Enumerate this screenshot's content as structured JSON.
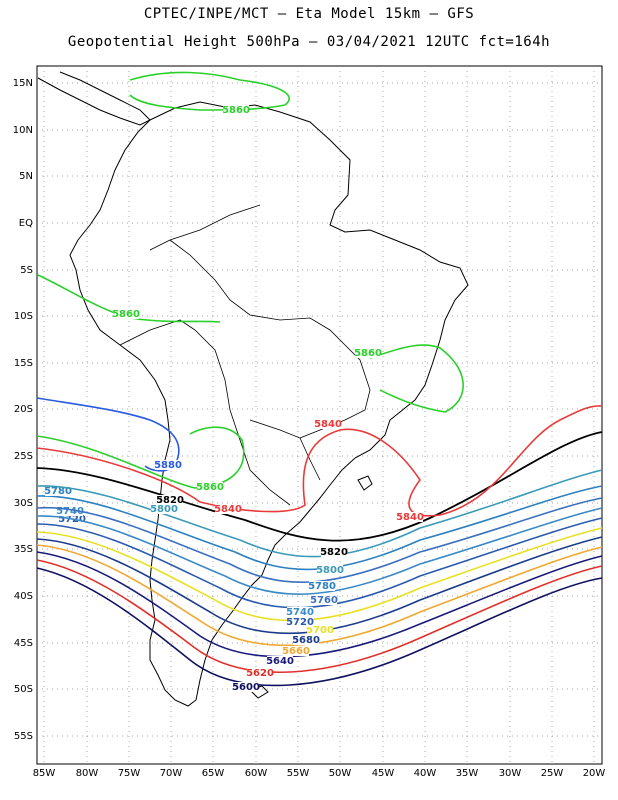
{
  "title_line1": "CPTEC/INPE/MCT –  Eta Model 15km – GFS",
  "title_line2": "Geopotential Height 500hPa – 03/04/2021 12UTC fct=164h",
  "lat_ticks": [
    "15N",
    "10N",
    "5N",
    "EQ",
    "5S",
    "10S",
    "15S",
    "20S",
    "25S",
    "30S",
    "35S",
    "40S",
    "45S",
    "50S",
    "55S"
  ],
  "lon_ticks": [
    "85W",
    "80W",
    "75W",
    "70W",
    "65W",
    "60W",
    "55W",
    "50W",
    "45W",
    "40W",
    "35W",
    "30W",
    "25W",
    "20W"
  ],
  "colors": {
    "c5600": "#101060",
    "c5620": "#e0302a",
    "c5640": "#1a1a7a",
    "c5660": "#f0a830",
    "c5680": "#1a3a8a",
    "c5700": "#e8e020",
    "c5720": "#2a5ab0",
    "c5740": "#3a8ac8",
    "c5760": "#3a70c0",
    "c5780": "#2a80c0",
    "c5800": "#3a9ab8",
    "c5820": "#000000",
    "c5840": "#e83a3a",
    "c5860": "#2ad02a",
    "c5880": "#2a5ae0",
    "coast": "#000000",
    "grid": "#888888"
  },
  "contours": [
    {
      "value": 5600,
      "label": "5600"
    },
    {
      "value": 5620,
      "label": "5620"
    },
    {
      "value": 5640,
      "label": "5640"
    },
    {
      "value": 5660,
      "label": "5660"
    },
    {
      "value": 5680,
      "label": "5680"
    },
    {
      "value": 5700,
      "label": "5700"
    },
    {
      "value": 5720,
      "label": "5720"
    },
    {
      "value": 5740,
      "label": "5740"
    },
    {
      "value": 5760,
      "label": "5760"
    },
    {
      "value": 5780,
      "label": "5780"
    },
    {
      "value": 5800,
      "label": "5800"
    },
    {
      "value": 5820,
      "label": "5820"
    },
    {
      "value": 5840,
      "label": "5840"
    },
    {
      "value": 5860,
      "label": "5860"
    },
    {
      "value": 5880,
      "label": "5880"
    }
  ]
}
